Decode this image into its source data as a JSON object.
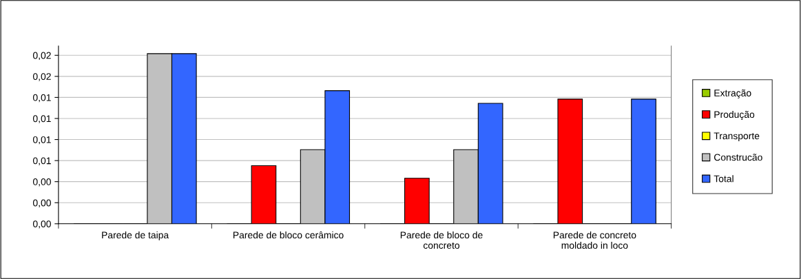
{
  "chart_data": {
    "type": "bar",
    "categories": [
      "Parede de taipa",
      "Parede de bloco cerâmico",
      "Parede de bloco de\nconcreto",
      "Parede de concreto\nmoldado in loco"
    ],
    "series": [
      {
        "name": "Extração",
        "color": "#99cc00",
        "values": [
          0,
          0,
          0,
          0
        ]
      },
      {
        "name": "Produção",
        "color": "#ff0000",
        "values": [
          0,
          0.0069,
          0.0054,
          0.0148
        ]
      },
      {
        "name": "Transporte",
        "color": "#ffff00",
        "values": [
          0,
          0,
          0,
          0
        ]
      },
      {
        "name": "Construcão",
        "color": "#c0c0c0",
        "values": [
          0.0202,
          0.0088,
          0.0088,
          0
        ]
      },
      {
        "name": "Total",
        "color": "#3366ff",
        "values": [
          0.0202,
          0.0158,
          0.0143,
          0.0148
        ]
      }
    ],
    "ylim": [
      0,
      0.0211
    ],
    "yticks": [
      {
        "value": 0,
        "label": "0,00"
      },
      {
        "value": 0.0025,
        "label": "0,00"
      },
      {
        "value": 0.005,
        "label": "0,00"
      },
      {
        "value": 0.0075,
        "label": "0,01"
      },
      {
        "value": 0.01,
        "label": "0,01"
      },
      {
        "value": 0.0125,
        "label": "0,01"
      },
      {
        "value": 0.015,
        "label": "0,01"
      },
      {
        "value": 0.0175,
        "label": "0,02"
      },
      {
        "value": 0.02,
        "label": "0,02"
      }
    ],
    "grid": "y",
    "legend": "right"
  }
}
